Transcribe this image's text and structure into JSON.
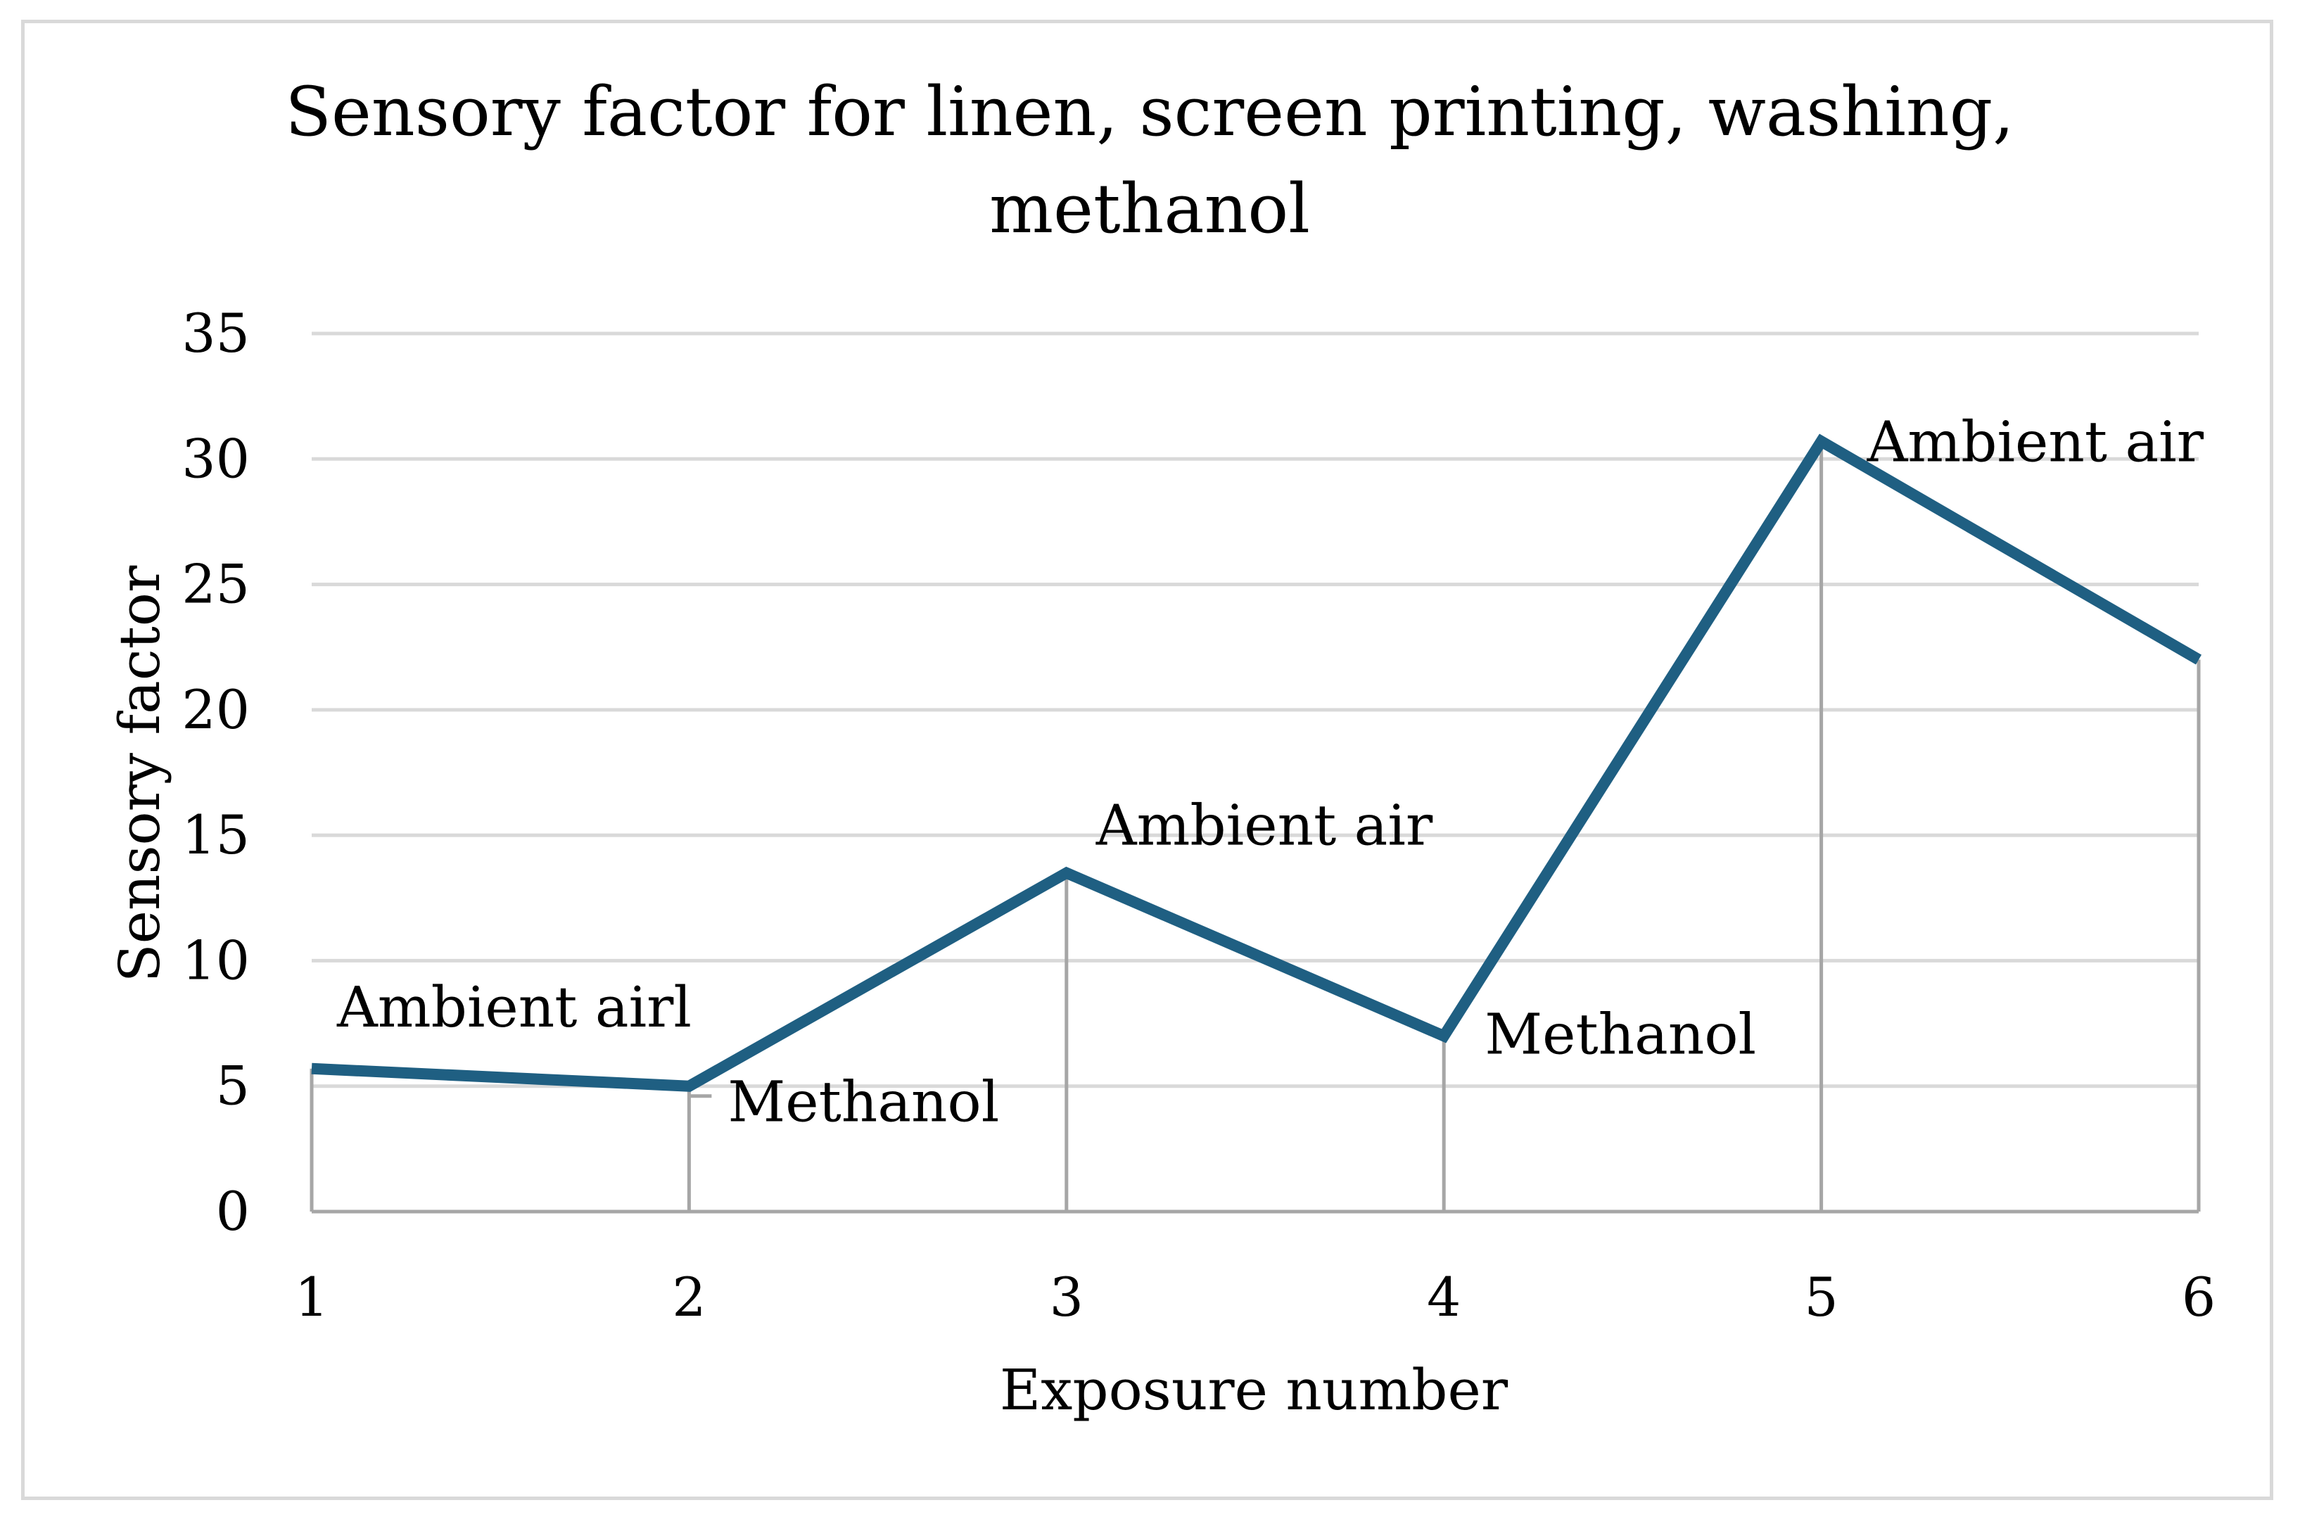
{
  "chart_data": {
    "type": "line",
    "title_lines": [
      "Sensory factor for linen, screen printing, washing,",
      "methanol"
    ],
    "xlabel": "Exposure number",
    "ylabel": "Sensory factor",
    "x": [
      1,
      2,
      3,
      4,
      5,
      6
    ],
    "x_tick_labels": [
      "1",
      "2",
      "3",
      "4",
      "5",
      "6"
    ],
    "ylim": [
      0,
      35
    ],
    "y_ticks": [
      0,
      5,
      10,
      15,
      20,
      25,
      30,
      35
    ],
    "y_tick_labels": [
      "0",
      "5",
      "10",
      "15",
      "20",
      "25",
      "30",
      "35"
    ],
    "grid": true,
    "drop_lines": true,
    "series": [
      {
        "values": [
          5.7,
          5.0,
          13.5,
          7.0,
          30.7,
          22.0
        ],
        "color": "#1f5f82"
      }
    ],
    "point_labels": [
      {
        "index": 0,
        "text": "Ambient airl"
      },
      {
        "index": 1,
        "text": "Methanol"
      },
      {
        "index": 2,
        "text": "Ambient air"
      },
      {
        "index": 3,
        "text": "Methanol"
      },
      {
        "index": 4,
        "text": "Ambient air"
      }
    ],
    "colors": {
      "line": "#1f5f82",
      "grid": "#d9d9d9",
      "drop_line": "#a6a6a6",
      "frame": "#d9d9d9"
    }
  }
}
